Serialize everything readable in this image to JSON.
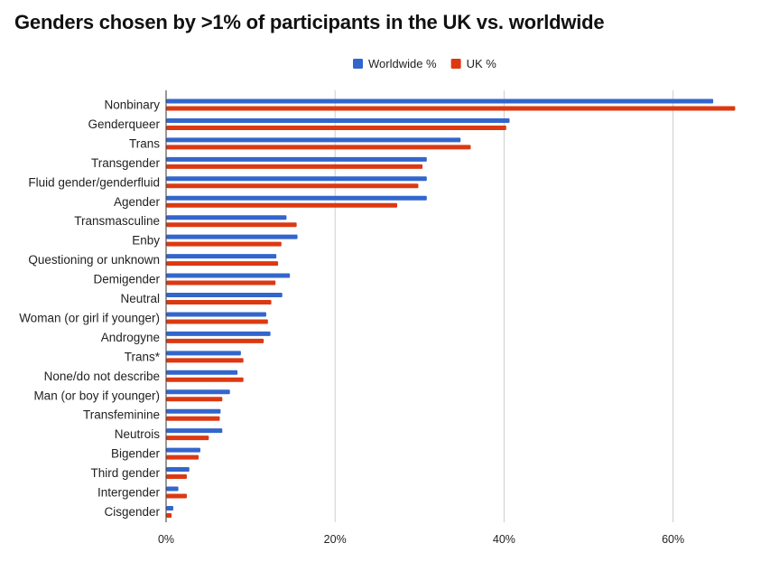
{
  "chart_data": {
    "type": "bar",
    "orientation": "horizontal",
    "title": "Genders chosen by >1% of participants in the UK vs. worldwide",
    "xlabel": "",
    "ylabel": "",
    "xlim": [
      0,
      70
    ],
    "xticks": [
      0,
      20,
      40,
      60
    ],
    "tick_suffix": "%",
    "grid": true,
    "legend_position": "top-center",
    "categories": [
      "Nonbinary",
      "Genderqueer",
      "Trans",
      "Transgender",
      "Fluid gender/genderfluid",
      "Agender",
      "Transmasculine",
      "Enby",
      "Questioning or unknown",
      "Demigender",
      "Neutral",
      "Woman (or girl if younger)",
      "Androgyne",
      "Trans*",
      "None/do not describe",
      "Man (or boy if younger)",
      "Transfeminine",
      "Neutrois",
      "Bigender",
      "Third gender",
      "Intergender",
      "Cisgender"
    ],
    "series": [
      {
        "name": "Worldwide %",
        "color": "#3366cc",
        "values": [
          64.7,
          40.6,
          34.8,
          30.8,
          30.8,
          30.8,
          14.2,
          15.5,
          13.0,
          14.6,
          13.7,
          11.8,
          12.3,
          8.8,
          8.4,
          7.5,
          6.4,
          6.6,
          4.0,
          2.7,
          1.4,
          0.8
        ]
      },
      {
        "name": "UK %",
        "color": "#dc3912",
        "values": [
          67.3,
          40.2,
          36.0,
          30.3,
          29.8,
          27.3,
          15.4,
          13.6,
          13.2,
          12.9,
          12.4,
          12.0,
          11.5,
          9.1,
          9.1,
          6.6,
          6.3,
          5.0,
          3.8,
          2.4,
          2.4,
          0.6
        ]
      }
    ]
  }
}
